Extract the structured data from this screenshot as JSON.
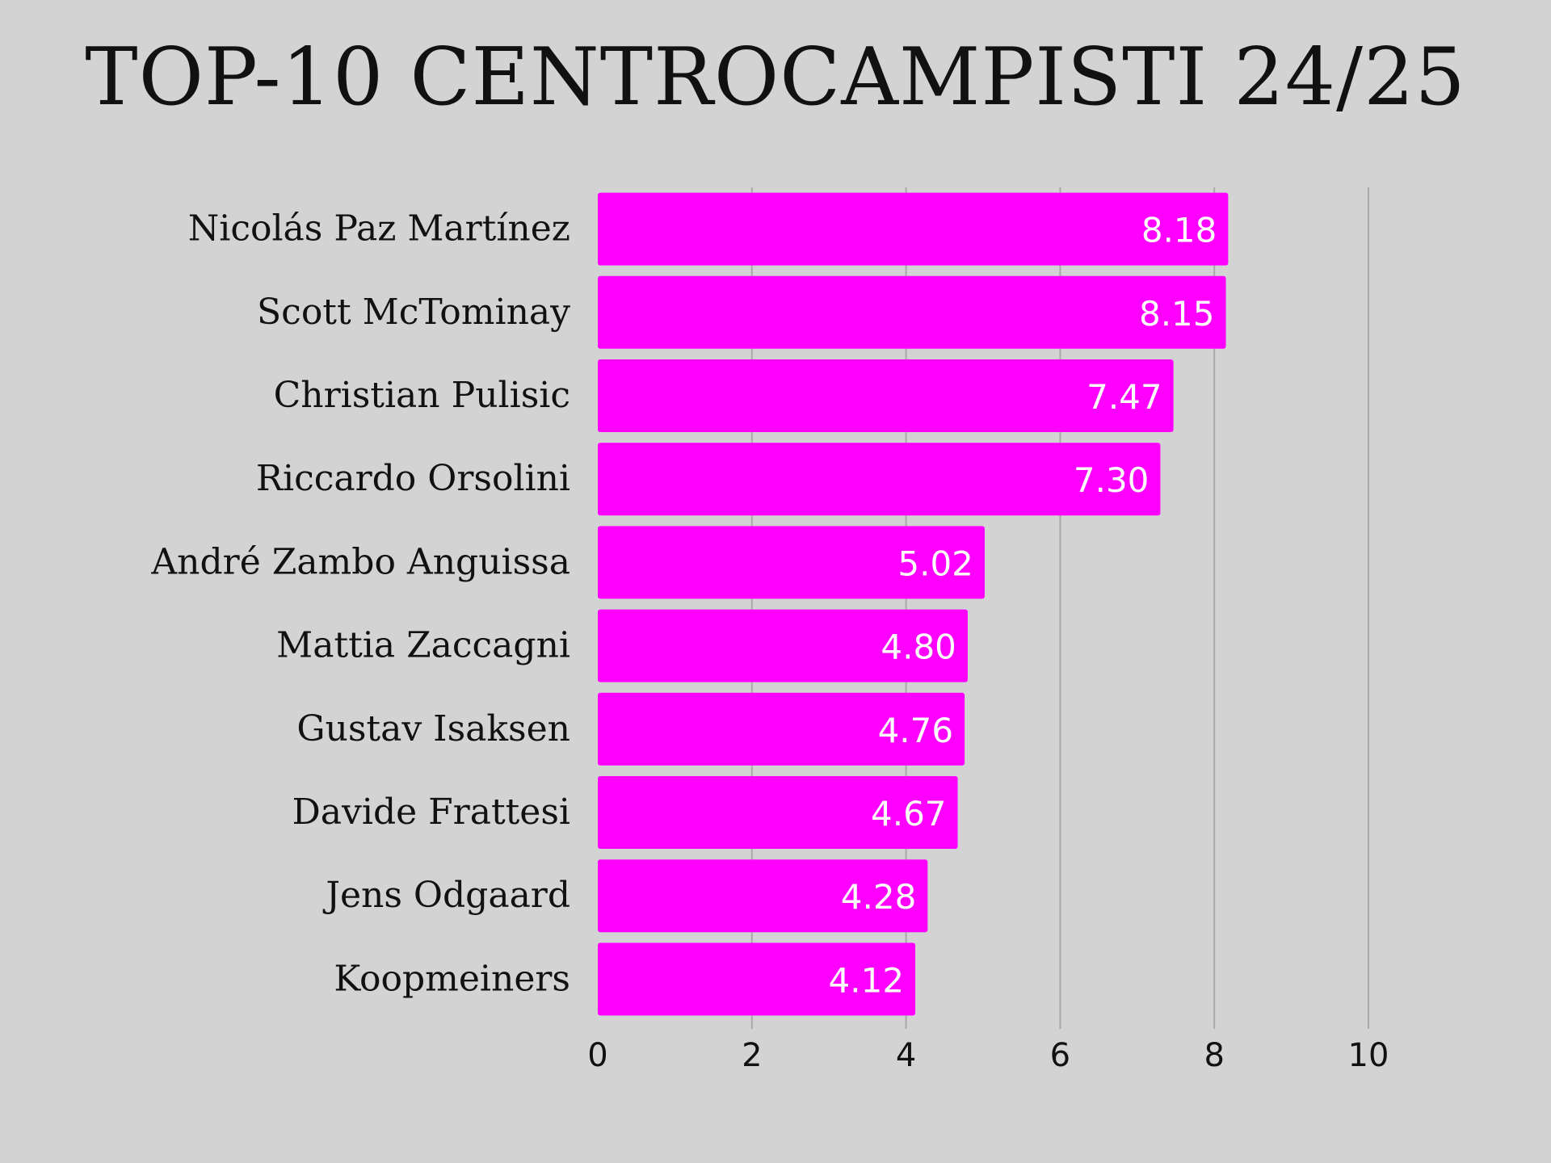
{
  "chart_data": {
    "type": "bar",
    "orientation": "horizontal",
    "title": "TOP-10 CENTROCAMPISTI 24/25",
    "categories": [
      "Nicolás Paz Martínez",
      "Scott McTominay",
      "Christian Pulisic",
      "Riccardo Orsolini",
      "André Zambo Anguissa",
      "Mattia Zaccagni",
      "Gustav Isaksen",
      "Davide Frattesi",
      "Jens Odgaard",
      "Koopmeiners"
    ],
    "values": [
      8.18,
      8.15,
      7.47,
      7.3,
      5.02,
      4.8,
      4.76,
      4.67,
      4.28,
      4.12
    ],
    "value_labels": [
      "8.18",
      "8.15",
      "7.47",
      "7.30",
      "5.02",
      "4.80",
      "4.76",
      "4.67",
      "4.28",
      "4.12"
    ],
    "xticks": [
      "0",
      "2",
      "4",
      "6",
      "8",
      "10"
    ],
    "xlim": [
      0,
      10
    ],
    "grid": "vertical",
    "legend": "none",
    "colors": {
      "bar": "#ff00ff",
      "background": "#d3d3d3",
      "grid": "#a9a9a9",
      "text": "#111111",
      "value_text": "#ffffff"
    }
  }
}
